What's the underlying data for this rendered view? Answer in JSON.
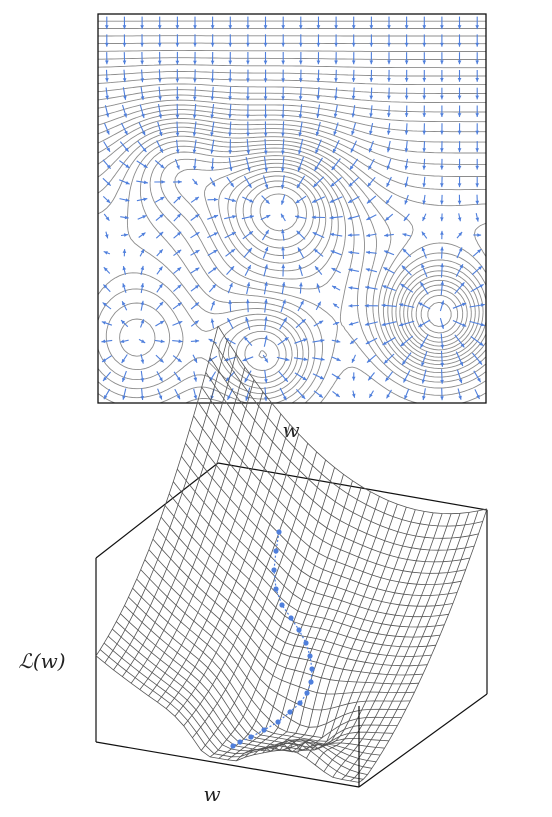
{
  "top_panel": {
    "xlabel": "w",
    "arrow_color": "#4f7fdc",
    "contour_color": "#8c8c8c"
  },
  "bottom_panel": {
    "xlabel": "w",
    "zlabel": "ℒ(w)",
    "path_color": "#4f7fdc",
    "mesh_color": "#555555"
  }
}
